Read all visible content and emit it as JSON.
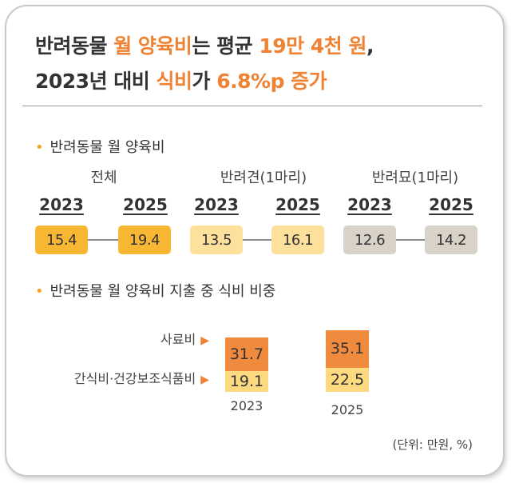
{
  "colors": {
    "accent": "#ef8233",
    "yellow": "#f5a623",
    "total_box": "#f7b733",
    "dog_box": "#fde09c",
    "cat_box": "#d8d2c8",
    "feed": "#f08a3c",
    "snack": "#fdd980"
  },
  "headline": {
    "line1": {
      "p1": "반려동물 ",
      "p2": "월 양육비",
      "p3": "는 평균 ",
      "p4": "19만 4천 원",
      "p5": ","
    },
    "line2": {
      "p1": "2023년 대비 ",
      "p2": "식비",
      "p3": "가 ",
      "p4": "6.8%p 증가"
    }
  },
  "sections": {
    "monthly": "반려동물 월 양육비",
    "share": "반려동물 월 양육비 지출 중 식비 비중"
  },
  "unit_note": "(단위: 만원, %)",
  "chart_data": [
    {
      "type": "table",
      "title": "반려동물 월 양육비",
      "groups": [
        {
          "label": "전체",
          "years": [
            "2023",
            "2025"
          ],
          "values": [
            "15.4",
            "19.4"
          ]
        },
        {
          "label": "반려견(1마리)",
          "years": [
            "2023",
            "2025"
          ],
          "values": [
            "13.5",
            "16.1"
          ]
        },
        {
          "label": "반려묘(1마리)",
          "years": [
            "2023",
            "2025"
          ],
          "values": [
            "12.6",
            "14.2"
          ]
        }
      ]
    },
    {
      "type": "bar",
      "stacked": true,
      "title": "반려동물 월 양육비 지출 중 식비 비중",
      "categories": [
        "2023",
        "2025"
      ],
      "series": [
        {
          "name": "간식비·건강보조식품비",
          "values": [
            19.1,
            22.5
          ]
        },
        {
          "name": "사료비",
          "values": [
            31.7,
            35.1
          ]
        }
      ]
    }
  ]
}
